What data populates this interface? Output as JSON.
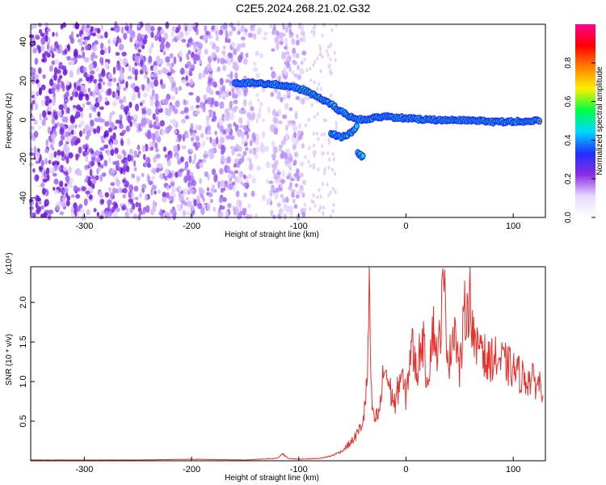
{
  "title": "C2E5.2024.268.21.02.G32",
  "chart_data": [
    {
      "type": "heatmap",
      "xlabel": "Height of straight line (km)",
      "ylabel": "Frequency (Hz)",
      "xlim": [
        -350,
        130
      ],
      "ylim": [
        -50,
        49
      ],
      "x_ticks": [
        -300,
        -200,
        -100,
        0,
        100
      ],
      "y_ticks": [
        -40,
        -20,
        0,
        20,
        40
      ],
      "colorbar": {
        "label": "Normalized spectral amplitude",
        "range": [
          0,
          1
        ],
        "ticks": [
          "0.0",
          "0.2",
          "0.4",
          "0.6",
          "0.8"
        ],
        "colors": [
          "#ffffff",
          "#e8d8ff",
          "#8a2be2",
          "#2030ff",
          "#00d8ff",
          "#00ff40",
          "#fff000",
          "#ff8000",
          "#ff0000",
          "#ff0090"
        ]
      },
      "ridge": {
        "x": [
          -160,
          -140,
          -120,
          -100,
          -90,
          -80,
          -70,
          -60,
          -50,
          -40,
          -30,
          -20,
          -10,
          0,
          20,
          40,
          60,
          80,
          100,
          125
        ],
        "freq": [
          19,
          19,
          18,
          16,
          14,
          11,
          8,
          4,
          1,
          0,
          1,
          2,
          1,
          1,
          0,
          0,
          0,
          -1,
          -1,
          0
        ]
      },
      "ridge_branches": [
        {
          "x": [
            -70,
            -60,
            -50,
            -45
          ],
          "freq": [
            -7,
            -9,
            -6,
            -3
          ]
        },
        {
          "x": [
            -45,
            -40
          ],
          "freq": [
            -17,
            -19
          ]
        }
      ],
      "noise_region_x": [
        -350,
        -95
      ]
    },
    {
      "type": "line",
      "xlabel": "Height of straight line (km)",
      "ylabel": "SNR (10 * v/v)",
      "y_multiplier": "(x10⁴)",
      "xlim": [
        -350,
        130
      ],
      "ylim": [
        0,
        2.45
      ],
      "x_ticks": [
        -300,
        -200,
        -100,
        0,
        100
      ],
      "y_ticks": [
        "0.5",
        "1.0",
        "1.5",
        "2.0"
      ],
      "color": "#e8302c",
      "x": [
        -350,
        -300,
        -250,
        -200,
        -150,
        -120,
        -115,
        -110,
        -100,
        -80,
        -70,
        -60,
        -50,
        -45,
        -40,
        -36,
        -34,
        -33,
        -30,
        -25,
        -20,
        -15,
        -10,
        -5,
        0,
        5,
        10,
        15,
        20,
        25,
        30,
        35,
        40,
        45,
        50,
        55,
        60,
        65,
        70,
        75,
        80,
        90,
        100,
        110,
        120,
        128
      ],
      "y": [
        0.01,
        0.01,
        0.01,
        0.02,
        0.01,
        0.03,
        0.09,
        0.03,
        0.02,
        0.03,
        0.06,
        0.12,
        0.25,
        0.35,
        0.5,
        1.0,
        2.5,
        0.9,
        0.5,
        0.6,
        1.2,
        0.9,
        0.7,
        1.1,
        0.8,
        1.5,
        1.1,
        1.6,
        1.0,
        1.7,
        1.3,
        2.25,
        1.2,
        1.8,
        1.1,
        1.9,
        2.05,
        1.3,
        1.6,
        1.2,
        1.3,
        1.25,
        1.15,
        1.05,
        1.0,
        0.95
      ]
    }
  ]
}
